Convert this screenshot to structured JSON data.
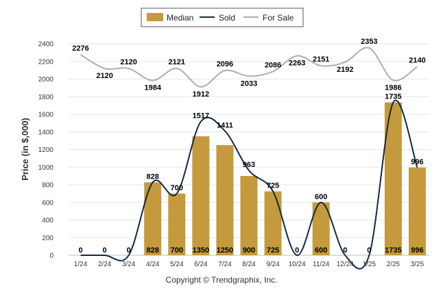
{
  "chart_data": {
    "type": "bar",
    "categories": [
      "1/24",
      "2/24",
      "3/24",
      "4/24",
      "5/24",
      "6/24",
      "7/24",
      "8/24",
      "9/24",
      "10/24",
      "11/24",
      "12/24",
      "1/25",
      "2/25",
      "3/25"
    ],
    "ylabel": "Price (in $,000)",
    "ylim": [
      0,
      2400
    ],
    "yticks": [
      0,
      200,
      400,
      600,
      800,
      1000,
      1200,
      1400,
      1600,
      1800,
      2000,
      2200,
      2400
    ],
    "grid": true,
    "legend_position": "top-center",
    "series": [
      {
        "name": "Median",
        "kind": "bar",
        "color": "#c49a3c",
        "values": [
          0,
          0,
          0,
          828,
          700,
          1350,
          1250,
          900,
          725,
          0,
          600,
          0,
          0,
          1735,
          996
        ]
      },
      {
        "name": "Sold",
        "kind": "line",
        "color": "#0f2846",
        "values": [
          0,
          0,
          0,
          828,
          700,
          1517,
          1411,
          963,
          725,
          0,
          600,
          0,
          0,
          1735,
          996
        ]
      },
      {
        "name": "For Sale",
        "kind": "line",
        "color": "#a6adbd",
        "values": [
          2276,
          2120,
          2120,
          1984,
          2121,
          1912,
          2096,
          2033,
          2086,
          2263,
          2151,
          2192,
          2353,
          1986,
          2140
        ]
      }
    ]
  },
  "footer": {
    "copyright": "Copyright © Trendgraphix, Inc."
  }
}
